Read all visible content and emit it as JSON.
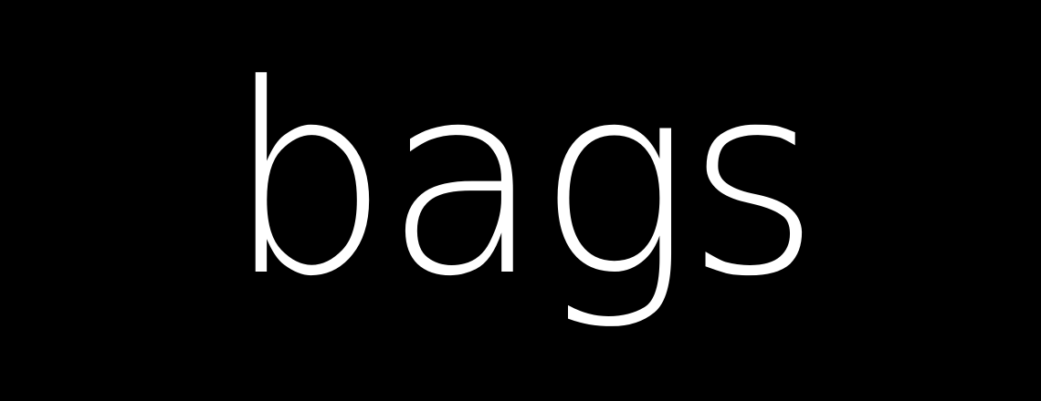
{
  "background_color": "#000000",
  "text_color": "#ffffff",
  "word": "bags"
}
